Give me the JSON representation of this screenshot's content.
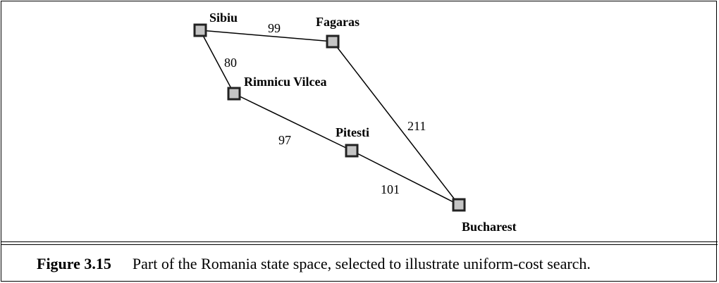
{
  "figure": {
    "label": "Figure 3.15",
    "caption": "Part of the Romania state space, selected to illustrate uniform-cost search."
  },
  "graph": {
    "nodes": [
      {
        "id": "sibiu",
        "name": "Sibiu"
      },
      {
        "id": "fagaras",
        "name": "Fagaras"
      },
      {
        "id": "rimnicu",
        "name": "Rimnicu Vilcea"
      },
      {
        "id": "pitesti",
        "name": "Pitesti"
      },
      {
        "id": "bucharest",
        "name": "Bucharest"
      }
    ],
    "edges": [
      {
        "from": "sibiu",
        "to": "fagaras",
        "cost": "99"
      },
      {
        "from": "sibiu",
        "to": "rimnicu",
        "cost": "80"
      },
      {
        "from": "rimnicu",
        "to": "pitesti",
        "cost": "97"
      },
      {
        "from": "fagaras",
        "to": "bucharest",
        "cost": "211"
      },
      {
        "from": "pitesti",
        "to": "bucharest",
        "cost": "101"
      }
    ]
  },
  "colors": {
    "node_fill": "#c4c4c4",
    "node_stroke": "#222222",
    "edge": "#000000"
  }
}
